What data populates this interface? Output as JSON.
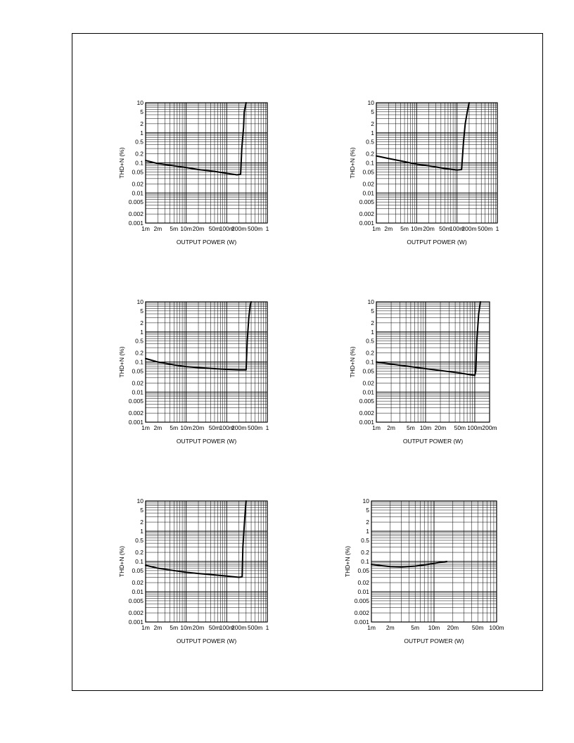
{
  "chart_data": [
    {
      "type": "line",
      "xlabel": "OUTPUT POWER (W)",
      "ylabel": "THD+N (%)",
      "xscale": "log",
      "yscale": "log",
      "xlim": [
        0.001,
        1
      ],
      "ylim": [
        0.001,
        10
      ],
      "grid": true,
      "xticks": [
        {
          "value": 0.001,
          "label": "1m"
        },
        {
          "value": 0.002,
          "label": "2m"
        },
        {
          "value": 0.005,
          "label": "5m"
        },
        {
          "value": 0.01,
          "label": "10m"
        },
        {
          "value": 0.02,
          "label": "20m"
        },
        {
          "value": 0.05,
          "label": "50m"
        },
        {
          "value": 0.1,
          "label": "100m"
        },
        {
          "value": 0.2,
          "label": "200m"
        },
        {
          "value": 0.5,
          "label": "500m"
        },
        {
          "value": 1,
          "label": "1"
        }
      ],
      "yticks": [
        {
          "value": 10,
          "label": "10"
        },
        {
          "value": 5,
          "label": "5"
        },
        {
          "value": 2,
          "label": "2"
        },
        {
          "value": 1,
          "label": "1"
        },
        {
          "value": 0.5,
          "label": "0.5"
        },
        {
          "value": 0.2,
          "label": "0.2"
        },
        {
          "value": 0.1,
          "label": "0.1"
        },
        {
          "value": 0.05,
          "label": "0.05"
        },
        {
          "value": 0.02,
          "label": "0.02"
        },
        {
          "value": 0.01,
          "label": "0.01"
        },
        {
          "value": 0.005,
          "label": "0.005"
        },
        {
          "value": 0.002,
          "label": "0.002"
        },
        {
          "value": 0.001,
          "label": "0.001"
        }
      ],
      "series": [
        {
          "x": [
            0.001,
            0.002,
            0.005,
            0.01,
            0.02,
            0.05,
            0.1,
            0.18,
            0.22,
            0.235,
            0.26,
            0.27,
            0.3
          ],
          "y": [
            0.12,
            0.095,
            0.08,
            0.07,
            0.06,
            0.052,
            0.045,
            0.04,
            0.042,
            0.3,
            1.5,
            5,
            10
          ]
        }
      ]
    },
    {
      "type": "line",
      "xlabel": "OUTPUT POWER (W)",
      "ylabel": "THD+N (%)",
      "xscale": "log",
      "yscale": "log",
      "xlim": [
        0.001,
        1
      ],
      "ylim": [
        0.001,
        10
      ],
      "grid": true,
      "xticks": [
        {
          "value": 0.001,
          "label": "1m"
        },
        {
          "value": 0.002,
          "label": "2m"
        },
        {
          "value": 0.005,
          "label": "5m"
        },
        {
          "value": 0.01,
          "label": "10m"
        },
        {
          "value": 0.02,
          "label": "20m"
        },
        {
          "value": 0.05,
          "label": "50m"
        },
        {
          "value": 0.1,
          "label": "100m"
        },
        {
          "value": 0.2,
          "label": "200m"
        },
        {
          "value": 0.5,
          "label": "500m"
        },
        {
          "value": 1,
          "label": "1"
        }
      ],
      "yticks": [
        {
          "value": 10,
          "label": "10"
        },
        {
          "value": 5,
          "label": "5"
        },
        {
          "value": 2,
          "label": "2"
        },
        {
          "value": 1,
          "label": "1"
        },
        {
          "value": 0.5,
          "label": "0.5"
        },
        {
          "value": 0.2,
          "label": "0.2"
        },
        {
          "value": 0.1,
          "label": "0.1"
        },
        {
          "value": 0.05,
          "label": "0.05"
        },
        {
          "value": 0.02,
          "label": "0.02"
        },
        {
          "value": 0.01,
          "label": "0.01"
        },
        {
          "value": 0.005,
          "label": "0.005"
        },
        {
          "value": 0.002,
          "label": "0.002"
        },
        {
          "value": 0.001,
          "label": "0.001"
        }
      ],
      "series": [
        {
          "x": [
            0.001,
            0.002,
            0.005,
            0.01,
            0.02,
            0.05,
            0.1,
            0.13,
            0.145,
            0.16,
            0.18,
            0.2
          ],
          "y": [
            0.17,
            0.14,
            0.11,
            0.09,
            0.08,
            0.065,
            0.058,
            0.06,
            0.5,
            2,
            5,
            10
          ]
        }
      ]
    },
    {
      "type": "line",
      "xlabel": "OUTPUT POWER (W)",
      "ylabel": "THD+N (%)",
      "xscale": "log",
      "yscale": "log",
      "xlim": [
        0.001,
        1
      ],
      "ylim": [
        0.001,
        10
      ],
      "grid": true,
      "xticks": [
        {
          "value": 0.001,
          "label": "1m"
        },
        {
          "value": 0.002,
          "label": "2m"
        },
        {
          "value": 0.005,
          "label": "5m"
        },
        {
          "value": 0.01,
          "label": "10m"
        },
        {
          "value": 0.02,
          "label": "20m"
        },
        {
          "value": 0.05,
          "label": "50m"
        },
        {
          "value": 0.1,
          "label": "100m"
        },
        {
          "value": 0.2,
          "label": "200m"
        },
        {
          "value": 0.5,
          "label": "500m"
        },
        {
          "value": 1,
          "label": "1"
        }
      ],
      "yticks": [
        {
          "value": 10,
          "label": "10"
        },
        {
          "value": 5,
          "label": "5"
        },
        {
          "value": 2,
          "label": "2"
        },
        {
          "value": 1,
          "label": "1"
        },
        {
          "value": 0.5,
          "label": "0.5"
        },
        {
          "value": 0.2,
          "label": "0.2"
        },
        {
          "value": 0.1,
          "label": "0.1"
        },
        {
          "value": 0.05,
          "label": "0.05"
        },
        {
          "value": 0.02,
          "label": "0.02"
        },
        {
          "value": 0.01,
          "label": "0.01"
        },
        {
          "value": 0.005,
          "label": "0.005"
        },
        {
          "value": 0.002,
          "label": "0.002"
        },
        {
          "value": 0.001,
          "label": "0.001"
        }
      ],
      "series": [
        {
          "x": [
            0.001,
            0.002,
            0.005,
            0.01,
            0.02,
            0.05,
            0.1,
            0.2,
            0.3,
            0.32,
            0.35,
            0.38,
            0.4
          ],
          "y": [
            0.13,
            0.1,
            0.08,
            0.07,
            0.065,
            0.06,
            0.057,
            0.055,
            0.055,
            0.5,
            3,
            8,
            10
          ]
        }
      ]
    },
    {
      "type": "line",
      "xlabel": "OUTPUT POWER (W)",
      "ylabel": "THD+N (%)",
      "xscale": "log",
      "yscale": "log",
      "xlim": [
        0.001,
        0.2
      ],
      "ylim": [
        0.001,
        10
      ],
      "grid": true,
      "xticks": [
        {
          "value": 0.001,
          "label": "1m"
        },
        {
          "value": 0.002,
          "label": "2m"
        },
        {
          "value": 0.005,
          "label": "5m"
        },
        {
          "value": 0.01,
          "label": "10m"
        },
        {
          "value": 0.02,
          "label": "20m"
        },
        {
          "value": 0.05,
          "label": "50m"
        },
        {
          "value": 0.1,
          "label": "100m"
        },
        {
          "value": 0.2,
          "label": "200m"
        }
      ],
      "yticks": [
        {
          "value": 10,
          "label": "10"
        },
        {
          "value": 5,
          "label": "5"
        },
        {
          "value": 2,
          "label": "2"
        },
        {
          "value": 1,
          "label": "1"
        },
        {
          "value": 0.5,
          "label": "0.5"
        },
        {
          "value": 0.2,
          "label": "0.2"
        },
        {
          "value": 0.1,
          "label": "0.1"
        },
        {
          "value": 0.05,
          "label": "0.05"
        },
        {
          "value": 0.02,
          "label": "0.02"
        },
        {
          "value": 0.01,
          "label": "0.01"
        },
        {
          "value": 0.005,
          "label": "0.005"
        },
        {
          "value": 0.002,
          "label": "0.002"
        },
        {
          "value": 0.001,
          "label": "0.001"
        }
      ],
      "series": [
        {
          "x": [
            0.001,
            0.002,
            0.005,
            0.01,
            0.02,
            0.05,
            0.08,
            0.1,
            0.105,
            0.11,
            0.12,
            0.13
          ],
          "y": [
            0.1,
            0.085,
            0.07,
            0.06,
            0.052,
            0.043,
            0.038,
            0.036,
            0.05,
            0.5,
            4,
            10
          ]
        }
      ]
    },
    {
      "type": "line",
      "xlabel": "OUTPUT POWER (W)",
      "ylabel": "THD+N (%)",
      "xscale": "log",
      "yscale": "log",
      "xlim": [
        0.001,
        1
      ],
      "ylim": [
        0.001,
        10
      ],
      "grid": true,
      "xticks": [
        {
          "value": 0.001,
          "label": "1m"
        },
        {
          "value": 0.002,
          "label": "2m"
        },
        {
          "value": 0.005,
          "label": "5m"
        },
        {
          "value": 0.01,
          "label": "10m"
        },
        {
          "value": 0.02,
          "label": "20m"
        },
        {
          "value": 0.05,
          "label": "50m"
        },
        {
          "value": 0.1,
          "label": "100m"
        },
        {
          "value": 0.2,
          "label": "200m"
        },
        {
          "value": 0.5,
          "label": "500m"
        },
        {
          "value": 1,
          "label": "1"
        }
      ],
      "yticks": [
        {
          "value": 10,
          "label": "10"
        },
        {
          "value": 5,
          "label": "5"
        },
        {
          "value": 2,
          "label": "2"
        },
        {
          "value": 1,
          "label": "1"
        },
        {
          "value": 0.5,
          "label": "0.5"
        },
        {
          "value": 0.2,
          "label": "0.2"
        },
        {
          "value": 0.1,
          "label": "0.1"
        },
        {
          "value": 0.05,
          "label": "0.05"
        },
        {
          "value": 0.02,
          "label": "0.02"
        },
        {
          "value": 0.01,
          "label": "0.01"
        },
        {
          "value": 0.005,
          "label": "0.005"
        },
        {
          "value": 0.002,
          "label": "0.002"
        },
        {
          "value": 0.001,
          "label": "0.001"
        }
      ],
      "series": [
        {
          "x": [
            0.001,
            0.002,
            0.005,
            0.01,
            0.02,
            0.05,
            0.1,
            0.2,
            0.24,
            0.25,
            0.27,
            0.29,
            0.3
          ],
          "y": [
            0.075,
            0.06,
            0.05,
            0.044,
            0.04,
            0.036,
            0.033,
            0.03,
            0.031,
            0.3,
            1.5,
            6,
            10
          ]
        }
      ]
    },
    {
      "type": "line",
      "xlabel": "OUTPUT POWER (W)",
      "ylabel": "THD+N (%)",
      "xscale": "log",
      "yscale": "log",
      "xlim": [
        0.001,
        0.1
      ],
      "ylim": [
        0.001,
        10
      ],
      "grid": true,
      "xticks": [
        {
          "value": 0.001,
          "label": "1m"
        },
        {
          "value": 0.002,
          "label": "2m"
        },
        {
          "value": 0.005,
          "label": "5m"
        },
        {
          "value": 0.01,
          "label": "10m"
        },
        {
          "value": 0.02,
          "label": "20m"
        },
        {
          "value": 0.05,
          "label": "50m"
        },
        {
          "value": 0.1,
          "label": "100m"
        }
      ],
      "yticks": [
        {
          "value": 10,
          "label": "10"
        },
        {
          "value": 5,
          "label": "5"
        },
        {
          "value": 2,
          "label": "2"
        },
        {
          "value": 1,
          "label": "1"
        },
        {
          "value": 0.5,
          "label": "0.5"
        },
        {
          "value": 0.2,
          "label": "0.2"
        },
        {
          "value": 0.1,
          "label": "0.1"
        },
        {
          "value": 0.05,
          "label": "0.05"
        },
        {
          "value": 0.02,
          "label": "0.02"
        },
        {
          "value": 0.01,
          "label": "0.01"
        },
        {
          "value": 0.005,
          "label": "0.005"
        },
        {
          "value": 0.002,
          "label": "0.002"
        },
        {
          "value": 0.001,
          "label": "0.001"
        }
      ],
      "series": [
        {
          "x": [
            0.001,
            0.0015,
            0.002,
            0.003,
            0.005,
            0.008,
            0.012,
            0.016
          ],
          "y": [
            0.08,
            0.072,
            0.068,
            0.066,
            0.07,
            0.08,
            0.092,
            0.1
          ]
        }
      ]
    }
  ]
}
